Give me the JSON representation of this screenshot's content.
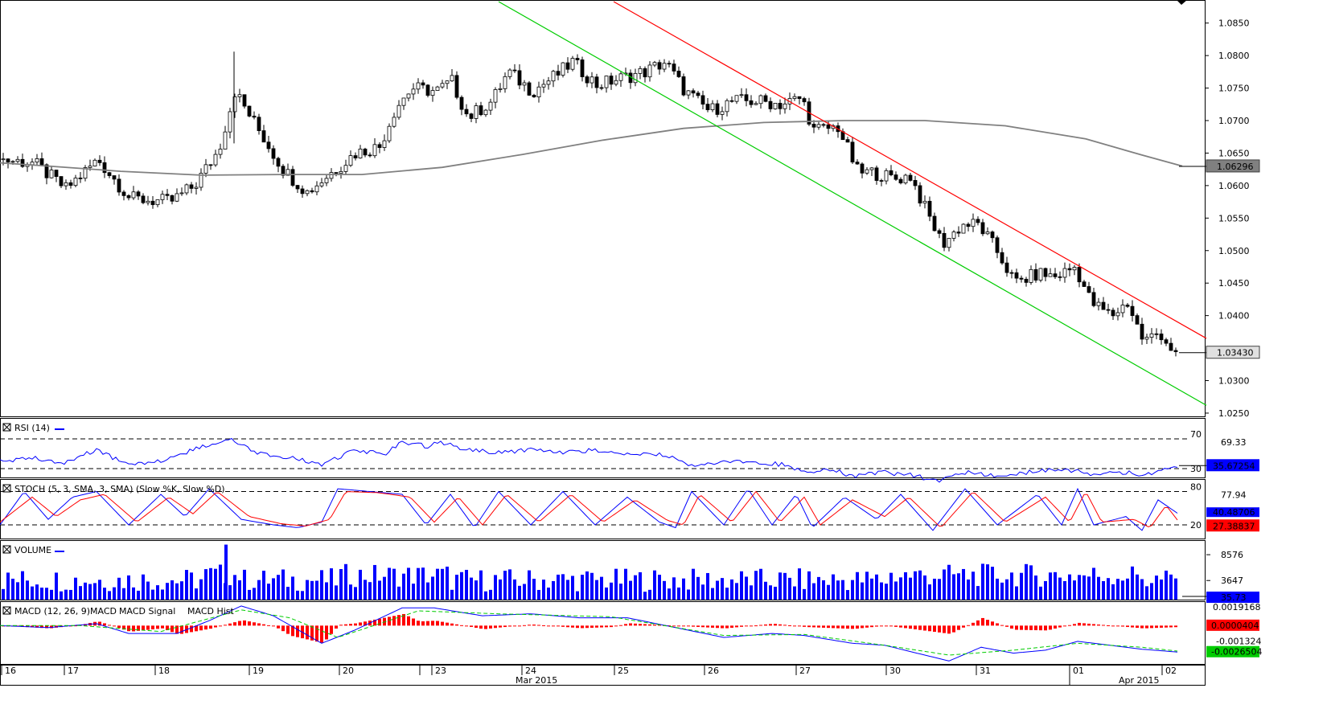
{
  "chart_data": [
    {
      "type": "candlestick",
      "panel": "price",
      "y_ticks": [
        "1.0850",
        "1.0800",
        "1.0750",
        "1.0700",
        "1.0650",
        "1.0600",
        "1.0550",
        "1.0500",
        "1.0450",
        "1.0400",
        "1.0300",
        "1.0250"
      ],
      "ylim": [
        1.0245,
        1.0883
      ],
      "grid": false,
      "legend": "none",
      "sma_last": "1.06296",
      "last_price": "1.03430",
      "sma_line": [
        [
          0,
          1.0635
        ],
        [
          60,
          1.063
        ],
        [
          150,
          1.0622
        ],
        [
          250,
          1.0616
        ],
        [
          350,
          1.0617
        ],
        [
          450,
          1.0617
        ],
        [
          550,
          1.0628
        ],
        [
          650,
          1.0648
        ],
        [
          750,
          1.067
        ],
        [
          850,
          1.0688
        ],
        [
          950,
          1.0697
        ],
        [
          1050,
          1.07
        ],
        [
          1150,
          1.07
        ],
        [
          1250,
          1.0692
        ],
        [
          1350,
          1.0672
        ],
        [
          1420,
          1.0647
        ],
        [
          1470,
          1.063
        ]
      ],
      "trend_lines": [
        {
          "color": "#00cc00",
          "points": [
            [
              620,
              1.0883
            ],
            [
              1500,
              1.0262
            ]
          ]
        },
        {
          "color": "#ff0000",
          "points": [
            [
              763,
              1.0883
            ],
            [
              1500,
              1.0365
            ]
          ]
        }
      ],
      "candles_anchor": [
        [
          0,
          1.064
        ],
        [
          40,
          1.0635
        ],
        [
          80,
          1.0595
        ],
        [
          120,
          1.064
        ],
        [
          160,
          1.058
        ],
        [
          210,
          1.0575
        ],
        [
          240,
          1.06
        ],
        [
          270,
          1.0655
        ],
        [
          290,
          1.0745
        ],
        [
          320,
          1.0685
        ],
        [
          350,
          1.0625
        ],
        [
          380,
          1.059
        ],
        [
          410,
          1.062
        ],
        [
          440,
          1.065
        ],
        [
          470,
          1.066
        ],
        [
          490,
          1.072
        ],
        [
          510,
          1.075
        ],
        [
          540,
          1.0745
        ],
        [
          560,
          1.076
        ],
        [
          580,
          1.0705
        ],
        [
          610,
          1.073
        ],
        [
          630,
          1.0775
        ],
        [
          660,
          1.0745
        ],
        [
          690,
          1.077
        ],
        [
          710,
          1.079
        ],
        [
          740,
          1.0755
        ],
        [
          770,
          1.0765
        ],
        [
          800,
          1.0775
        ],
        [
          825,
          1.079
        ],
        [
          850,
          1.0745
        ],
        [
          880,
          1.0715
        ],
        [
          910,
          1.073
        ],
        [
          940,
          1.073
        ],
        [
          970,
          1.0725
        ],
        [
          995,
          1.0735
        ],
        [
          1010,
          1.0685
        ],
        [
          1040,
          1.069
        ],
        [
          1065,
          1.062
        ],
        [
          1085,
          1.062
        ],
        [
          1110,
          1.061
        ],
        [
          1130,
          1.0615
        ],
        [
          1150,
          1.056
        ],
        [
          1170,
          1.051
        ],
        [
          1195,
          1.054
        ],
        [
          1215,
          1.054
        ],
        [
          1240,
          1.0495
        ],
        [
          1260,
          1.045
        ],
        [
          1290,
          1.0465
        ],
        [
          1310,
          1.046
        ],
        [
          1335,
          1.0475
        ],
        [
          1355,
          1.042
        ],
        [
          1380,
          1.04
        ],
        [
          1400,
          1.042
        ],
        [
          1420,
          1.036
        ],
        [
          1440,
          1.0375
        ],
        [
          1465,
          1.033
        ]
      ]
    },
    {
      "type": "line",
      "panel": "rsi",
      "title": "RSI (14)",
      "y_ticks": [
        "70",
        "69.33",
        "30"
      ],
      "last_value": "35.67254",
      "ylim": [
        17,
        97
      ],
      "levels": [
        70,
        30
      ],
      "series": [
        {
          "color": "#0000ff",
          "points": [
            [
              0,
              40
            ],
            [
              40,
              45
            ],
            [
              80,
              38
            ],
            [
              120,
              55
            ],
            [
              160,
              35
            ],
            [
              200,
              40
            ],
            [
              240,
              55
            ],
            [
              285,
              70
            ],
            [
              320,
              50
            ],
            [
              360,
              45
            ],
            [
              400,
              35
            ],
            [
              440,
              55
            ],
            [
              480,
              50
            ],
            [
              500,
              66
            ],
            [
              530,
              60
            ],
            [
              550,
              65
            ],
            [
              580,
              55
            ],
            [
              620,
              52
            ],
            [
              660,
              55
            ],
            [
              700,
              52
            ],
            [
              740,
              55
            ],
            [
              780,
              48
            ],
            [
              820,
              50
            ],
            [
              860,
              35
            ],
            [
              900,
              40
            ],
            [
              940,
              38
            ],
            [
              980,
              35
            ],
            [
              1000,
              25
            ],
            [
              1030,
              30
            ],
            [
              1060,
              20
            ],
            [
              1100,
              25
            ],
            [
              1140,
              20
            ],
            [
              1165,
              12
            ],
            [
              1200,
              25
            ],
            [
              1240,
              20
            ],
            [
              1280,
              25
            ],
            [
              1320,
              30
            ],
            [
              1360,
              22
            ],
            [
              1400,
              25
            ],
            [
              1420,
              20
            ],
            [
              1440,
              25
            ],
            [
              1465,
              34
            ]
          ]
        }
      ]
    },
    {
      "type": "line",
      "panel": "stoch",
      "title": "STOCH (5, 3, SMA, 3, SMA) (Slow %K, Slow %D)",
      "y_ticks": [
        "80",
        "77.94",
        "20"
      ],
      "last_values": [
        "40.48706",
        "27.38837"
      ],
      "ylim": [
        -6,
        101
      ],
      "levels": [
        80,
        20
      ],
      "series": [
        {
          "color": "#0000ff",
          "points": [
            [
              0,
              20
            ],
            [
              30,
              80
            ],
            [
              60,
              30
            ],
            [
              90,
              70
            ],
            [
              120,
              80
            ],
            [
              160,
              20
            ],
            [
              200,
              75
            ],
            [
              230,
              35
            ],
            [
              260,
              85
            ],
            [
              300,
              30
            ],
            [
              340,
              20
            ],
            [
              370,
              15
            ],
            [
              400,
              25
            ],
            [
              420,
              85
            ],
            [
              460,
              80
            ],
            [
              500,
              75
            ],
            [
              530,
              20
            ],
            [
              560,
              75
            ],
            [
              590,
              15
            ],
            [
              620,
              80
            ],
            [
              660,
              20
            ],
            [
              700,
              80
            ],
            [
              740,
              20
            ],
            [
              780,
              70
            ],
            [
              820,
              25
            ],
            [
              840,
              15
            ],
            [
              860,
              80
            ],
            [
              900,
              20
            ],
            [
              930,
              85
            ],
            [
              960,
              20
            ],
            [
              990,
              75
            ],
            [
              1010,
              15
            ],
            [
              1050,
              70
            ],
            [
              1090,
              30
            ],
            [
              1120,
              75
            ],
            [
              1160,
              10
            ],
            [
              1200,
              85
            ],
            [
              1240,
              20
            ],
            [
              1290,
              75
            ],
            [
              1320,
              20
            ],
            [
              1340,
              85
            ],
            [
              1360,
              20
            ],
            [
              1400,
              35
            ],
            [
              1420,
              10
            ],
            [
              1440,
              65
            ],
            [
              1465,
              40
            ]
          ]
        },
        {
          "color": "#ff0000",
          "points": [
            [
              0,
              25
            ],
            [
              40,
              70
            ],
            [
              70,
              35
            ],
            [
              100,
              65
            ],
            [
              130,
              75
            ],
            [
              170,
              25
            ],
            [
              210,
              70
            ],
            [
              240,
              40
            ],
            [
              270,
              80
            ],
            [
              310,
              35
            ],
            [
              350,
              22
            ],
            [
              380,
              18
            ],
            [
              410,
              30
            ],
            [
              430,
              80
            ],
            [
              470,
              78
            ],
            [
              510,
              70
            ],
            [
              540,
              25
            ],
            [
              570,
              70
            ],
            [
              600,
              20
            ],
            [
              630,
              75
            ],
            [
              670,
              25
            ],
            [
              710,
              75
            ],
            [
              750,
              25
            ],
            [
              790,
              65
            ],
            [
              830,
              28
            ],
            [
              850,
              20
            ],
            [
              870,
              75
            ],
            [
              910,
              25
            ],
            [
              940,
              80
            ],
            [
              970,
              25
            ],
            [
              1000,
              70
            ],
            [
              1020,
              20
            ],
            [
              1060,
              65
            ],
            [
              1100,
              35
            ],
            [
              1130,
              70
            ],
            [
              1170,
              15
            ],
            [
              1210,
              80
            ],
            [
              1250,
              25
            ],
            [
              1300,
              70
            ],
            [
              1330,
              25
            ],
            [
              1350,
              80
            ],
            [
              1370,
              25
            ],
            [
              1410,
              30
            ],
            [
              1430,
              15
            ],
            [
              1450,
              55
            ],
            [
              1465,
              27
            ]
          ]
        }
      ]
    },
    {
      "type": "bar",
      "panel": "volume",
      "title": "VOLUME",
      "y_ticks": [
        "8576",
        "3647"
      ],
      "last_value": "35.73",
      "ylim": [
        0,
        11200
      ],
      "spike": {
        "x": 281,
        "value": 10500
      },
      "series": [
        {
          "color": "#0000ff"
        }
      ]
    },
    {
      "type": "bar+line",
      "panel": "macd",
      "title": "MACD (12, 26, 9)",
      "legend": [
        "MACD",
        "MACD Signal",
        "MACD Hist"
      ],
      "y_ticks": [
        "0.0019168",
        "-0.001324"
      ],
      "last_values": [
        "0.0000404",
        "-0.0026504"
      ],
      "ylim": [
        -0.0039,
        0.0024
      ],
      "series": [
        {
          "name": "MACD",
          "color": "#0000ff",
          "points": [
            [
              0,
              0
            ],
            [
              60,
              -0.0002
            ],
            [
              120,
              0.0002
            ],
            [
              160,
              -0.0008
            ],
            [
              220,
              -0.0008
            ],
            [
              260,
              0.0005
            ],
            [
              300,
              0.002
            ],
            [
              340,
              0.001
            ],
            [
              400,
              -0.0018
            ],
            [
              440,
              -0.0005
            ],
            [
              500,
              0.0018
            ],
            [
              540,
              0.0018
            ],
            [
              600,
              0.001
            ],
            [
              660,
              0.0012
            ],
            [
              720,
              0.0008
            ],
            [
              780,
              0.0008
            ],
            [
              840,
              -0.0002
            ],
            [
              900,
              -0.0012
            ],
            [
              960,
              -0.0008
            ],
            [
              1000,
              -0.001
            ],
            [
              1060,
              -0.0018
            ],
            [
              1100,
              -0.002
            ],
            [
              1140,
              -0.0028
            ],
            [
              1180,
              -0.0036
            ],
            [
              1220,
              -0.0022
            ],
            [
              1260,
              -0.0028
            ],
            [
              1300,
              -0.0025
            ],
            [
              1340,
              -0.0016
            ],
            [
              1380,
              -0.002
            ],
            [
              1420,
              -0.0024
            ],
            [
              1465,
              -0.0027
            ]
          ]
        },
        {
          "name": "MACD Signal",
          "color": "#00cc00",
          "points": [
            [
              0,
              0
            ],
            [
              100,
              0
            ],
            [
              200,
              -0.0006
            ],
            [
              300,
              0.0016
            ],
            [
              360,
              0.0008
            ],
            [
              420,
              -0.0012
            ],
            [
              520,
              0.0015
            ],
            [
              620,
              0.0012
            ],
            [
              760,
              0.0009
            ],
            [
              900,
              -0.001
            ],
            [
              1000,
              -0.0009
            ],
            [
              1100,
              -0.002
            ],
            [
              1180,
              -0.003
            ],
            [
              1260,
              -0.0025
            ],
            [
              1340,
              -0.0018
            ],
            [
              1420,
              -0.0022
            ],
            [
              1465,
              -0.0026
            ]
          ]
        },
        {
          "name": "MACD Hist",
          "color": "#ff0000"
        }
      ]
    }
  ],
  "x_axis": {
    "day_labels": [
      "16",
      "17",
      "18",
      "19",
      "20",
      "23",
      "24",
      "25",
      "26",
      "27",
      "30",
      "31",
      "01",
      "02"
    ],
    "month_labels": [
      "Mar 2015",
      "Apr 2015"
    ]
  }
}
